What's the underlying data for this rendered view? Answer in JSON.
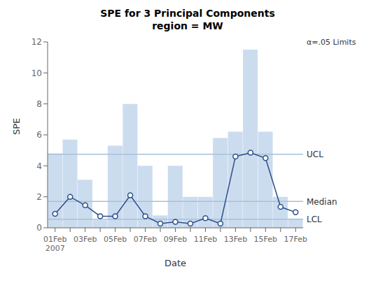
{
  "chart_data": {
    "type": "bar",
    "title": "SPE for 3 Principal Components",
    "subtitle": "region = MW",
    "x_label": "Date",
    "y_label": "SPE",
    "categories": [
      "01Feb\n2007",
      null,
      "03Feb",
      null,
      "05Feb",
      null,
      "07Feb",
      null,
      "09Feb",
      null,
      "11Feb",
      null,
      "13Feb",
      null,
      "15Feb",
      null,
      "17Feb"
    ],
    "series": [
      {
        "type": "bar",
        "color": "#ccdcef",
        "values": [
          4.8,
          5.7,
          3.1,
          0.5,
          5.3,
          8.0,
          4.0,
          0.8,
          4.0,
          2.0,
          2.0,
          5.8,
          6.2,
          11.5,
          6.2,
          2.0,
          0.6
        ]
      },
      {
        "type": "line",
        "color": "#2c4f8a",
        "marker": "circle",
        "values": [
          0.9,
          2.0,
          1.45,
          0.75,
          0.75,
          2.1,
          0.75,
          0.27,
          0.38,
          0.27,
          0.62,
          0.27,
          4.6,
          4.85,
          4.5,
          1.35,
          1.0
        ]
      }
    ],
    "limits": [
      {
        "label": "UCL",
        "value": 4.75,
        "color": "#a8c0d8"
      },
      {
        "label": "Median",
        "value": 1.7,
        "color": "#a8c0d8"
      },
      {
        "label": "LCL",
        "value": 0.55,
        "color": "#a8c0d8"
      }
    ],
    "annotation": "α=.05 Limits",
    "ylim": [
      0,
      12
    ],
    "yticks": [
      0,
      2,
      4,
      6,
      8,
      10,
      12
    ],
    "grid": false
  }
}
